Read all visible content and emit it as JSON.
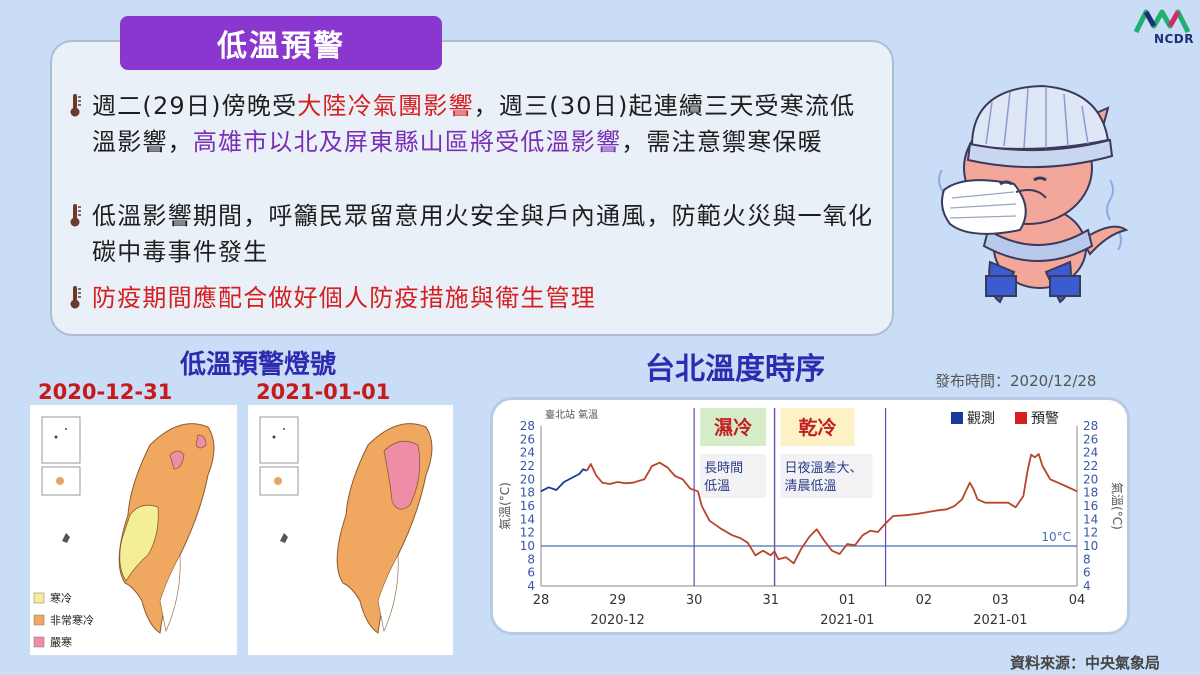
{
  "title": "低溫預警",
  "logo_text": "NCDR",
  "bullets": [
    {
      "parts": [
        {
          "text": "週二(29日)傍晚受",
          "color": "normal"
        },
        {
          "text": "大陸冷氣團影響",
          "color": "red"
        },
        {
          "text": "，週三(30日)起連續三天受寒流低溫影響，",
          "color": "normal"
        },
        {
          "text": "高雄市以北及屏東縣山區將受低溫影響",
          "color": "purple"
        },
        {
          "text": "，需注意禦寒保暖",
          "color": "normal"
        }
      ]
    },
    {
      "parts": [
        {
          "text": "低溫影響期間，呼籲民眾留意用火安全與戶內通風，防範火災與一氧化碳中毒事件發生",
          "color": "normal"
        }
      ]
    },
    {
      "parts": [
        {
          "text": "防疫期間應配合做好個人防疫措施與衛生管理",
          "color": "red"
        }
      ]
    }
  ],
  "maps": {
    "section_title": "低溫預警燈號",
    "dates": [
      "2020-12-31",
      "2021-01-01"
    ],
    "legend": [
      {
        "label": "寒冷",
        "color": "#f4ef97"
      },
      {
        "label": "非常寒冷",
        "color": "#f0a860"
      },
      {
        "label": "嚴寒",
        "color": "#ef8da7"
      }
    ]
  },
  "chart_section_title": "台北溫度時序",
  "publish_time": "發布時間：2020/12/28",
  "source": "資料來源：中央氣象局",
  "chart_data": {
    "type": "line",
    "station_label": "臺北站 氣溫",
    "ylabel_left": "氣溫(°C)",
    "ylabel_right": "氣溫(°C)",
    "ylim": [
      4,
      28
    ],
    "yticks": [
      4,
      6,
      8,
      10,
      12,
      14,
      16,
      18,
      20,
      22,
      24,
      26,
      28
    ],
    "xlim": [
      0,
      7
    ],
    "xticks": [
      {
        "x": 0,
        "label": "28"
      },
      {
        "x": 1,
        "label": "29"
      },
      {
        "x": 2,
        "label": "30"
      },
      {
        "x": 3,
        "label": "31"
      },
      {
        "x": 4,
        "label": "01"
      },
      {
        "x": 5,
        "label": "02"
      },
      {
        "x": 6,
        "label": "03"
      },
      {
        "x": 7,
        "label": "04"
      }
    ],
    "month_labels": [
      {
        "x": 1,
        "label": "2020-12"
      },
      {
        "x": 4,
        "label": "2021-01"
      },
      {
        "x": 6,
        "label": "2021-01"
      }
    ],
    "reference_line": {
      "y": 10,
      "label": "10°C",
      "color": "#4a6fb0"
    },
    "legend": [
      {
        "name": "觀測",
        "color": "#1a3a9a"
      },
      {
        "name": "預警",
        "color": "#d42020"
      }
    ],
    "periods": [
      {
        "x_start": 2.0,
        "x_end": 3.05,
        "label": "濕冷",
        "note_lines": [
          "長時間",
          "低溫"
        ],
        "label_bg": "#d6ebc8",
        "label_color": "#c22020"
      },
      {
        "x_start": 3.05,
        "x_end": 4.5,
        "label": "乾冷",
        "note_lines": [
          "日夜溫差大、",
          "清晨低溫"
        ],
        "label_bg": "#fdf1c6",
        "label_color": "#c22020"
      }
    ],
    "series": [
      {
        "name": "觀測",
        "color": "#1a3a9a",
        "points": [
          [
            0,
            18.2
          ],
          [
            0.1,
            18.8
          ],
          [
            0.2,
            18.4
          ],
          [
            0.3,
            19.6
          ],
          [
            0.4,
            20.2
          ],
          [
            0.5,
            20.8
          ],
          [
            0.55,
            21.5
          ],
          [
            0.6,
            21.3
          ]
        ]
      },
      {
        "name": "預警",
        "color": "#b8442a",
        "points": [
          [
            0.6,
            21.3
          ],
          [
            0.65,
            22.3
          ],
          [
            0.72,
            20.6
          ],
          [
            0.8,
            19.5
          ],
          [
            0.9,
            19.3
          ],
          [
            1.0,
            19.6
          ],
          [
            1.1,
            19.4
          ],
          [
            1.2,
            19.5
          ],
          [
            1.35,
            20.0
          ],
          [
            1.45,
            22.0
          ],
          [
            1.55,
            22.5
          ],
          [
            1.65,
            21.8
          ],
          [
            1.75,
            20.5
          ],
          [
            1.85,
            20.0
          ],
          [
            1.95,
            18.6
          ],
          [
            2.05,
            18.2
          ],
          [
            2.1,
            16.0
          ],
          [
            2.2,
            13.8
          ],
          [
            2.35,
            12.6
          ],
          [
            2.5,
            11.6
          ],
          [
            2.6,
            11.2
          ],
          [
            2.7,
            10.5
          ],
          [
            2.8,
            8.6
          ],
          [
            2.9,
            9.3
          ],
          [
            3.0,
            8.6
          ],
          [
            3.05,
            9.2
          ],
          [
            3.1,
            8.0
          ],
          [
            3.2,
            8.3
          ],
          [
            3.3,
            7.4
          ],
          [
            3.4,
            9.6
          ],
          [
            3.5,
            11.3
          ],
          [
            3.6,
            12.5
          ],
          [
            3.7,
            10.8
          ],
          [
            3.8,
            9.3
          ],
          [
            3.9,
            8.8
          ],
          [
            4.0,
            10.3
          ],
          [
            4.1,
            10.1
          ],
          [
            4.2,
            11.6
          ],
          [
            4.3,
            12.3
          ],
          [
            4.4,
            12.1
          ],
          [
            4.5,
            13.4
          ],
          [
            4.6,
            14.5
          ],
          [
            4.75,
            14.6
          ],
          [
            4.9,
            14.8
          ],
          [
            5.0,
            15.0
          ],
          [
            5.15,
            15.3
          ],
          [
            5.3,
            15.5
          ],
          [
            5.4,
            16.0
          ],
          [
            5.5,
            17.0
          ],
          [
            5.55,
            18.3
          ],
          [
            5.6,
            19.5
          ],
          [
            5.65,
            18.5
          ],
          [
            5.7,
            17.0
          ],
          [
            5.8,
            16.5
          ],
          [
            5.9,
            16.5
          ],
          [
            6.0,
            16.5
          ],
          [
            6.1,
            16.5
          ],
          [
            6.2,
            15.8
          ],
          [
            6.3,
            17.5
          ],
          [
            6.35,
            21.0
          ],
          [
            6.4,
            23.7
          ],
          [
            6.45,
            23.3
          ],
          [
            6.5,
            23.8
          ],
          [
            6.55,
            22.0
          ],
          [
            6.65,
            20.0
          ],
          [
            6.75,
            19.5
          ],
          [
            6.85,
            19.0
          ],
          [
            7.0,
            18.2
          ]
        ]
      }
    ]
  }
}
